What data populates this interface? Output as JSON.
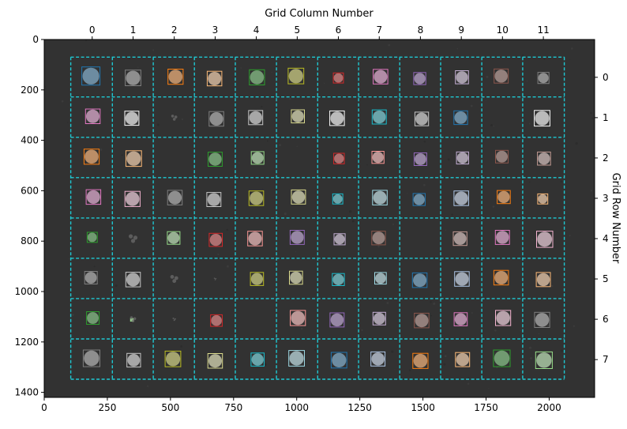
{
  "chart_data": {
    "type": "image-grid-overlay",
    "top_axis_label": "Grid Column Number",
    "right_axis_label": "Grid Row Number",
    "x_range": [
      0,
      2180
    ],
    "y_range": [
      1420,
      0
    ],
    "x_ticks": [
      0,
      250,
      500,
      750,
      1000,
      1250,
      1500,
      1750,
      2000
    ],
    "x_tick_labels": [
      "0",
      "250",
      "500",
      "750",
      "1000",
      "1250",
      "1500",
      "1750",
      "2000"
    ],
    "y_ticks": [
      0,
      200,
      400,
      600,
      800,
      1000,
      1200,
      1400
    ],
    "y_tick_labels": [
      "0",
      "200",
      "400",
      "600",
      "800",
      "1000",
      "1200",
      "1400"
    ],
    "column_centers": [
      190,
      352,
      515,
      677,
      840,
      1002,
      1165,
      1327,
      1490,
      1652,
      1815,
      1977
    ],
    "column_labels": [
      "0",
      "1",
      "2",
      "3",
      "4",
      "5",
      "6",
      "7",
      "8",
      "9",
      "10",
      "11"
    ],
    "row_centers": [
      150,
      310,
      470,
      630,
      790,
      950,
      1110,
      1270
    ],
    "row_labels": [
      "0",
      "1",
      "2",
      "3",
      "4",
      "5",
      "6",
      "7"
    ],
    "grid_x_lines": [
      105,
      270,
      432,
      595,
      757,
      920,
      1083,
      1245,
      1408,
      1570,
      1733,
      1895,
      2060
    ],
    "grid_y_lines": [
      70,
      228,
      388,
      548,
      708,
      868,
      1028,
      1188,
      1348
    ],
    "grid_color": "#1ec8d2",
    "image_background": "#323232",
    "colonies": [
      [
        0,
        0,
        "#1f77b4",
        72
      ],
      [
        1,
        0,
        "#7f7f7f",
        62
      ],
      [
        2,
        0,
        "#ff7f0e",
        60
      ],
      [
        3,
        0,
        "#ffbb78",
        58
      ],
      [
        4,
        0,
        "#2ca02c",
        60
      ],
      [
        5,
        0,
        "#bcbd22",
        62
      ],
      [
        6,
        0,
        "#d62728",
        40
      ],
      [
        7,
        0,
        "#e377c2",
        58
      ],
      [
        8,
        0,
        "#9467bd",
        48
      ],
      [
        9,
        0,
        "#c5b0d5",
        52
      ],
      [
        10,
        0,
        "#8c564b",
        56
      ],
      [
        11,
        0,
        "#7f7f7f",
        44
      ],
      [
        0,
        1,
        "#e377c2",
        58
      ],
      [
        1,
        1,
        "#ffffff",
        56
      ],
      [
        3,
        1,
        "#7f7f7f",
        58
      ],
      [
        4,
        1,
        "#c7c7c7",
        56
      ],
      [
        5,
        1,
        "#dbdb8d",
        52
      ],
      [
        6,
        1,
        "#ffffff",
        58
      ],
      [
        7,
        1,
        "#17becf",
        56
      ],
      [
        8,
        1,
        "#c7c7c7",
        54
      ],
      [
        9,
        1,
        "#1f77b4",
        54
      ],
      [
        11,
        1,
        "#ffffff",
        62
      ],
      [
        0,
        2,
        "#ff7f0e",
        60
      ],
      [
        1,
        2,
        "#ffbb78",
        62
      ],
      [
        3,
        2,
        "#2ca02c",
        56
      ],
      [
        4,
        2,
        "#98df8a",
        50
      ],
      [
        6,
        2,
        "#d62728",
        42
      ],
      [
        7,
        2,
        "#ff9896",
        48
      ],
      [
        8,
        2,
        "#9467bd",
        50
      ],
      [
        9,
        2,
        "#c5b0d5",
        48
      ],
      [
        10,
        2,
        "#8c564b",
        50
      ],
      [
        11,
        2,
        "#c49c94",
        52
      ],
      [
        0,
        3,
        "#e377c2",
        58
      ],
      [
        1,
        3,
        "#f7b6d2",
        60
      ],
      [
        2,
        3,
        "#7f7f7f",
        58
      ],
      [
        3,
        3,
        "#c7c7c7",
        56
      ],
      [
        4,
        3,
        "#bcbd22",
        58
      ],
      [
        5,
        3,
        "#dbdb8d",
        56
      ],
      [
        6,
        3,
        "#17becf",
        40
      ],
      [
        7,
        3,
        "#9edae5",
        58
      ],
      [
        8,
        3,
        "#1f77b4",
        48
      ],
      [
        9,
        3,
        "#aec7e8",
        58
      ],
      [
        10,
        3,
        "#ff7f0e",
        52
      ],
      [
        11,
        3,
        "#ffbb78",
        40
      ],
      [
        0,
        4,
        "#2ca02c",
        40
      ],
      [
        2,
        4,
        "#98df8a",
        50
      ],
      [
        3,
        4,
        "#d62728",
        52
      ],
      [
        4,
        4,
        "#ff9896",
        58
      ],
      [
        5,
        4,
        "#9467bd",
        56
      ],
      [
        6,
        4,
        "#c5b0d5",
        44
      ],
      [
        7,
        4,
        "#8c564b",
        54
      ],
      [
        9,
        4,
        "#c49c94",
        54
      ],
      [
        10,
        4,
        "#e377c2",
        56
      ],
      [
        11,
        4,
        "#f7b6d2",
        64
      ],
      [
        0,
        5,
        "#7f7f7f",
        50
      ],
      [
        1,
        5,
        "#c7c7c7",
        58
      ],
      [
        4,
        5,
        "#bcbd22",
        52
      ],
      [
        5,
        5,
        "#dbdb8d",
        52
      ],
      [
        6,
        5,
        "#17becf",
        48
      ],
      [
        7,
        5,
        "#9edae5",
        46
      ],
      [
        8,
        5,
        "#1f77b4",
        58
      ],
      [
        9,
        5,
        "#aec7e8",
        58
      ],
      [
        10,
        5,
        "#ff7f0e",
        58
      ],
      [
        11,
        5,
        "#ffbb78",
        56
      ],
      [
        0,
        6,
        "#2ca02c",
        50
      ],
      [
        1,
        6,
        "#98df8a",
        10
      ],
      [
        3,
        6,
        "#d62728",
        46
      ],
      [
        5,
        6,
        "#ff9896",
        60
      ],
      [
        6,
        6,
        "#9467bd",
        56
      ],
      [
        7,
        6,
        "#c5b0d5",
        50
      ],
      [
        8,
        6,
        "#8c564b",
        58
      ],
      [
        9,
        6,
        "#e377c2",
        52
      ],
      [
        10,
        6,
        "#f7b6d2",
        60
      ],
      [
        11,
        6,
        "#7f7f7f",
        60
      ],
      [
        0,
        7,
        "#7f7f7f",
        66
      ],
      [
        1,
        7,
        "#c7c7c7",
        54
      ],
      [
        2,
        7,
        "#bcbd22",
        62
      ],
      [
        3,
        7,
        "#dbdb8d",
        58
      ],
      [
        4,
        7,
        "#17becf",
        52
      ],
      [
        5,
        7,
        "#9edae5",
        62
      ],
      [
        6,
        7,
        "#1f77b4",
        62
      ],
      [
        7,
        7,
        "#aec7e8",
        56
      ],
      [
        8,
        7,
        "#ff7f0e",
        60
      ],
      [
        9,
        7,
        "#ffbb78",
        56
      ],
      [
        10,
        7,
        "#2ca02c",
        66
      ],
      [
        11,
        7,
        "#98df8a",
        66
      ]
    ],
    "unboxed_specks": [
      [
        2,
        1,
        18
      ],
      [
        1,
        4,
        26
      ],
      [
        2,
        5,
        24
      ],
      [
        1,
        6,
        18
      ],
      [
        2,
        6,
        10
      ],
      [
        3,
        5,
        8
      ]
    ]
  }
}
